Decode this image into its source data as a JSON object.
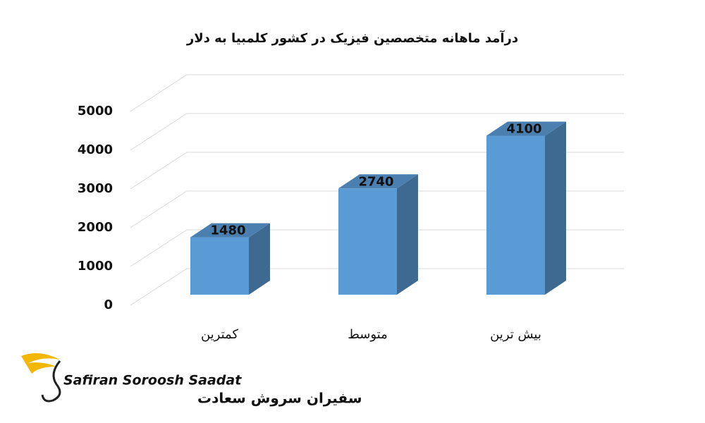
{
  "chart_data": {
    "type": "bar3d",
    "title": "درآمد ماهانه متخصصین فیزیک در کشور کلمبیا به دلار",
    "categories": [
      "کمترین",
      "متوسط",
      "بیش ترین"
    ],
    "values": [
      1480,
      2740,
      4100
    ],
    "color": "#5b9bd5",
    "ylim": [
      0,
      5000
    ],
    "yticks": [
      0,
      1000,
      2000,
      3000,
      4000,
      5000
    ],
    "grid": true
  },
  "logo": {
    "name": "Safiran Soroosh Saadat",
    "name_fa": "سفیران سروش سعادت"
  }
}
